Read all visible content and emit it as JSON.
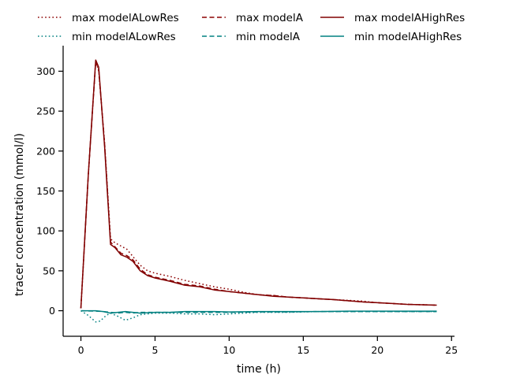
{
  "chart_data": {
    "type": "line",
    "xlabel": "time (h)",
    "ylabel": "tracer concentration (mmol/l)",
    "xlim": [
      -1.2,
      25.2
    ],
    "ylim": [
      -32,
      332
    ],
    "xticks": [
      0,
      5,
      10,
      15,
      20,
      25
    ],
    "yticks": [
      0,
      50,
      100,
      150,
      200,
      250,
      300
    ],
    "grid": false,
    "legend_position": "top",
    "series": [
      {
        "name": "max modelALowRes",
        "color": "#8b0000",
        "style": "dotted",
        "x": [
          0,
          0.5,
          1.0,
          1.2,
          1.6,
          2.0,
          2.3,
          2.7,
          3.1,
          3.5,
          4.0,
          4.5,
          5,
          6,
          7,
          8,
          9,
          10,
          11,
          12,
          13,
          14,
          15,
          16,
          17,
          18,
          19,
          20,
          21,
          22,
          23,
          24
        ],
        "y": [
          3,
          170,
          313,
          300,
          210,
          90,
          85,
          81,
          77,
          68,
          57,
          50,
          47,
          43,
          38,
          34,
          30,
          27,
          23,
          20,
          19,
          17,
          16,
          15,
          14,
          13,
          12,
          10,
          9,
          8,
          7.5,
          7
        ]
      },
      {
        "name": "max modelA",
        "color": "#8b0000",
        "style": "dashed",
        "x": [
          0,
          0.5,
          1.0,
          1.2,
          1.6,
          2.0,
          2.3,
          2.7,
          3.1,
          3.5,
          4.0,
          4.5,
          5,
          6,
          7,
          8,
          9,
          10,
          11,
          12,
          13,
          14,
          15,
          16,
          17,
          18,
          19,
          20,
          21,
          22,
          23,
          24
        ],
        "y": [
          3,
          170,
          312,
          302,
          208,
          86,
          80,
          72,
          69,
          64,
          52,
          45,
          42,
          38,
          33,
          31,
          27,
          24,
          22,
          20,
          19,
          17,
          16,
          15,
          14,
          12.5,
          11,
          10,
          9,
          8,
          7.5,
          7
        ]
      },
      {
        "name": "max modelAHighRes",
        "color": "#800000",
        "style": "solid",
        "x": [
          0,
          0.5,
          1.0,
          1.2,
          1.6,
          2.0,
          2.3,
          2.7,
          3.1,
          3.5,
          4.0,
          4.5,
          5,
          6,
          7,
          8,
          9,
          10,
          11,
          12,
          13,
          14,
          15,
          16,
          17,
          18,
          19,
          20,
          21,
          22,
          23,
          24
        ],
        "y": [
          3,
          170,
          314,
          305,
          205,
          83,
          79,
          70,
          67,
          62,
          50,
          44,
          41,
          37,
          32,
          30,
          26,
          24,
          22,
          20,
          18,
          17,
          16,
          15,
          14,
          12.5,
          11,
          10,
          9,
          8,
          7.5,
          7
        ]
      },
      {
        "name": "min modelALowRes",
        "color": "#008080",
        "style": "dotted",
        "x": [
          0,
          0.5,
          1.0,
          1.3,
          1.7,
          2.0,
          2.5,
          3.0,
          3.5,
          4.0,
          5,
          6,
          7,
          8,
          9,
          10,
          12,
          14,
          16,
          18,
          20,
          22,
          24
        ],
        "y": [
          0,
          -6,
          -14,
          -13,
          -6,
          -3,
          -7,
          -12,
          -9,
          -5,
          -3,
          -3,
          -4,
          -4,
          -5,
          -4,
          -2,
          -2,
          -1,
          -1,
          -1,
          -1,
          -1
        ]
      },
      {
        "name": "min modelA",
        "color": "#008080",
        "style": "dashed",
        "x": [
          0,
          1,
          1.5,
          2,
          2.5,
          3,
          3.5,
          4,
          5,
          6,
          7,
          8,
          9,
          10,
          12,
          14,
          16,
          18,
          20,
          22,
          24
        ],
        "y": [
          0,
          -0.5,
          -1,
          -2,
          -3,
          -2,
          -3,
          -2,
          -2,
          -2,
          -2,
          -2,
          -2,
          -2,
          -1.5,
          -1.5,
          -1,
          -1,
          -1,
          -1,
          -1
        ]
      },
      {
        "name": "min modelAHighRes",
        "color": "#008080",
        "style": "solid",
        "x": [
          0,
          1,
          1.5,
          2,
          2.5,
          3,
          3.5,
          4,
          5,
          6,
          7,
          8,
          9,
          10,
          12,
          14,
          16,
          18,
          20,
          22,
          24
        ],
        "y": [
          0,
          0,
          -1,
          -3,
          -2,
          -1,
          -2,
          -3,
          -2,
          -2,
          -1,
          -1,
          -1,
          -1.5,
          -1,
          -1,
          -1,
          -0.5,
          -0.5,
          -0.5,
          -0.5
        ]
      }
    ]
  }
}
